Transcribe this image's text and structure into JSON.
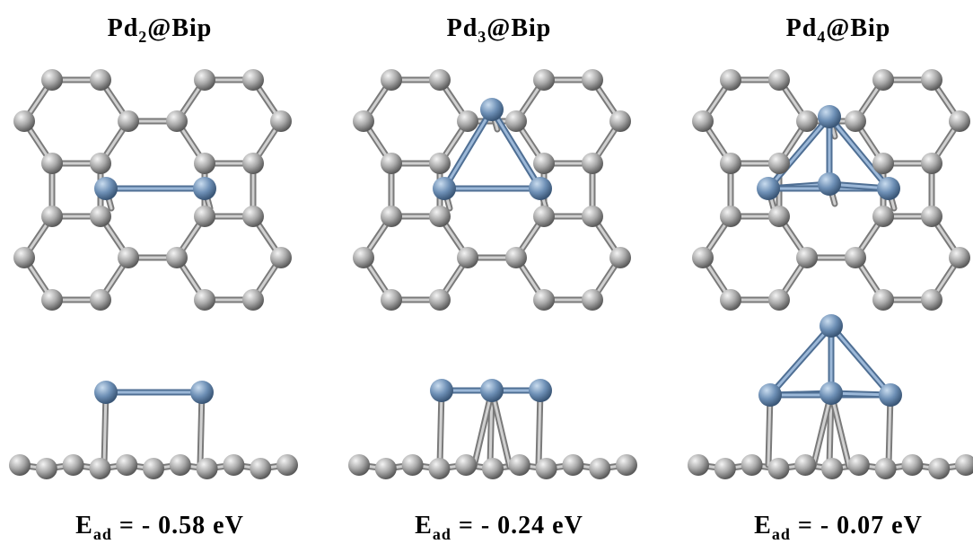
{
  "panels": [
    {
      "title": {
        "base": "Pd",
        "sub": "2",
        "rest": "@Bip"
      },
      "energy": {
        "base": "E",
        "sub": "ad",
        "rest": " = - 0.58 eV"
      }
    },
    {
      "title": {
        "base": "Pd",
        "sub": "3",
        "rest": "@Bip"
      },
      "energy": {
        "base": "E",
        "sub": "ad",
        "rest": " = - 0.24 eV"
      }
    },
    {
      "title": {
        "base": "Pd",
        "sub": "4",
        "rest": "@Bip"
      },
      "energy": {
        "base": "E",
        "sub": "ad",
        "rest": " = - 0.07 eV"
      }
    }
  ]
}
